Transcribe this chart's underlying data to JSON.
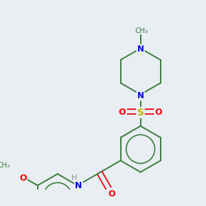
{
  "background_color": "#e8eef2",
  "bond_color": "#3a7a3a",
  "atom_colors": {
    "N": "#0000ee",
    "O": "#ee0000",
    "S": "#bbbb00",
    "H": "#909090",
    "C": "#3a7a3a"
  },
  "figsize": [
    3.0,
    3.0
  ],
  "dpi": 100,
  "xlim": [
    0,
    300
  ],
  "ylim": [
    0,
    300
  ]
}
